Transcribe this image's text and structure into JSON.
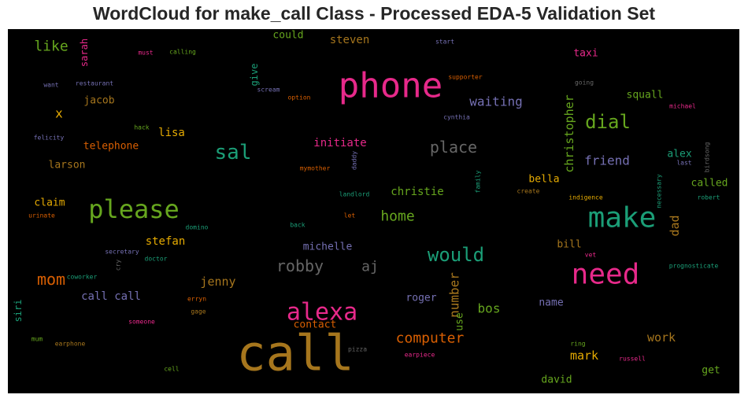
{
  "chart_data": {
    "type": "wordcloud",
    "title": "WordCloud for make_call Class - Processed EDA-5 Validation Set",
    "background": "#000000",
    "words": [
      {
        "text": "call",
        "color": "#a6761d"
      },
      {
        "text": "phone",
        "color": "#e7298a"
      },
      {
        "text": "need",
        "color": "#e7298a"
      },
      {
        "text": "make",
        "color": "#1b9e77"
      },
      {
        "text": "please",
        "color": "#66a61e"
      },
      {
        "text": "alexa",
        "color": "#e7298a"
      },
      {
        "text": "sal",
        "color": "#1b9e77"
      },
      {
        "text": "would",
        "color": "#1b9e77"
      },
      {
        "text": "dial",
        "color": "#66a61e"
      },
      {
        "text": "robby",
        "color": "#666666"
      },
      {
        "text": "place",
        "color": "#666666"
      },
      {
        "text": "computer",
        "color": "#d95f02"
      },
      {
        "text": "mom",
        "color": "#d95f02"
      },
      {
        "text": "home",
        "color": "#66a61e"
      },
      {
        "text": "aj",
        "color": "#666666"
      },
      {
        "text": "like",
        "color": "#66a61e"
      },
      {
        "text": "waiting",
        "color": "#7570b3"
      },
      {
        "text": "friend",
        "color": "#7570b3"
      },
      {
        "text": "number",
        "color": "#a6761d"
      },
      {
        "text": "christopher",
        "color": "#66a61e"
      },
      {
        "text": "bos",
        "color": "#66a61e"
      },
      {
        "text": "jenny",
        "color": "#a6761d"
      },
      {
        "text": "x",
        "color": "#e6ab02"
      },
      {
        "text": "work",
        "color": "#a6761d"
      },
      {
        "text": "mark",
        "color": "#e6ab02"
      },
      {
        "text": "dad",
        "color": "#a6761d"
      },
      {
        "text": "initiate",
        "color": "#e7298a"
      },
      {
        "text": "christie",
        "color": "#66a61e"
      },
      {
        "text": "steven",
        "color": "#a6761d"
      },
      {
        "text": "could",
        "color": "#66a61e"
      },
      {
        "text": "stefan",
        "color": "#e6ab02"
      },
      {
        "text": "michelle",
        "color": "#7570b3"
      },
      {
        "text": "call call",
        "color": "#7570b3"
      },
      {
        "text": "lisa",
        "color": "#e6ab02"
      },
      {
        "text": "telephone",
        "color": "#d95f02"
      },
      {
        "text": "larson",
        "color": "#a6761d"
      },
      {
        "text": "claim",
        "color": "#e6ab02"
      },
      {
        "text": "jacob",
        "color": "#a6761d"
      },
      {
        "text": "bella",
        "color": "#e6ab02"
      },
      {
        "text": "called",
        "color": "#66a61e"
      },
      {
        "text": "alex",
        "color": "#1b9e77"
      },
      {
        "text": "squall",
        "color": "#66a61e"
      },
      {
        "text": "bill",
        "color": "#a6761d"
      },
      {
        "text": "taxi",
        "color": "#e7298a"
      },
      {
        "text": "roger",
        "color": "#7570b3"
      },
      {
        "text": "contact",
        "color": "#d95f02"
      },
      {
        "text": "use",
        "color": "#66a61e"
      },
      {
        "text": "name",
        "color": "#7570b3"
      },
      {
        "text": "get",
        "color": "#66a61e"
      },
      {
        "text": "david",
        "color": "#66a61e"
      },
      {
        "text": "give",
        "color": "#1b9e77"
      },
      {
        "text": "sarah",
        "color": "#e7298a"
      },
      {
        "text": "siri",
        "color": "#1b9e77"
      },
      {
        "text": "must",
        "color": "#e7298a"
      },
      {
        "text": "calling",
        "color": "#66a61e"
      },
      {
        "text": "want",
        "color": "#7570b3"
      },
      {
        "text": "restaurant",
        "color": "#7570b3"
      },
      {
        "text": "hack",
        "color": "#66a61e"
      },
      {
        "text": "felicity",
        "color": "#7570b3"
      },
      {
        "text": "scream",
        "color": "#7570b3"
      },
      {
        "text": "option",
        "color": "#d95f02"
      },
      {
        "text": "start",
        "color": "#7570b3"
      },
      {
        "text": "supporter",
        "color": "#d95f02"
      },
      {
        "text": "going",
        "color": "#666666"
      },
      {
        "text": "michael",
        "color": "#e7298a"
      },
      {
        "text": "cynthia",
        "color": "#7570b3"
      },
      {
        "text": "birdsong",
        "color": "#666666"
      },
      {
        "text": "last",
        "color": "#7570b3"
      },
      {
        "text": "necessary",
        "color": "#1b9e77"
      },
      {
        "text": "mymother",
        "color": "#d95f02"
      },
      {
        "text": "daddy",
        "color": "#7570b3"
      },
      {
        "text": "family",
        "color": "#1b9e77"
      },
      {
        "text": "landlord",
        "color": "#1b9e77"
      },
      {
        "text": "create",
        "color": "#a6761d"
      },
      {
        "text": "indigence",
        "color": "#e6ab02"
      },
      {
        "text": "robert",
        "color": "#1b9e77"
      },
      {
        "text": "urinate",
        "color": "#d95f02"
      },
      {
        "text": "domino",
        "color": "#1b9e77"
      },
      {
        "text": "back",
        "color": "#1b9e77"
      },
      {
        "text": "let",
        "color": "#d95f02"
      },
      {
        "text": "secretary",
        "color": "#7570b3"
      },
      {
        "text": "doctor",
        "color": "#1b9e77"
      },
      {
        "text": "cry",
        "color": "#666666"
      },
      {
        "text": "vet",
        "color": "#e7298a"
      },
      {
        "text": "prognosticate",
        "color": "#1b9e77"
      },
      {
        "text": "coworker",
        "color": "#1b9e77"
      },
      {
        "text": "erryn",
        "color": "#d95f02"
      },
      {
        "text": "gage",
        "color": "#a6761d"
      },
      {
        "text": "someone",
        "color": "#e7298a"
      },
      {
        "text": "mum",
        "color": "#66a61e"
      },
      {
        "text": "earphone",
        "color": "#a6761d"
      },
      {
        "text": "pizza",
        "color": "#666666"
      },
      {
        "text": "earpiece",
        "color": "#e7298a"
      },
      {
        "text": "ring",
        "color": "#66a61e"
      },
      {
        "text": "russell",
        "color": "#e7298a"
      },
      {
        "text": "cell",
        "color": "#66a61e"
      }
    ]
  }
}
